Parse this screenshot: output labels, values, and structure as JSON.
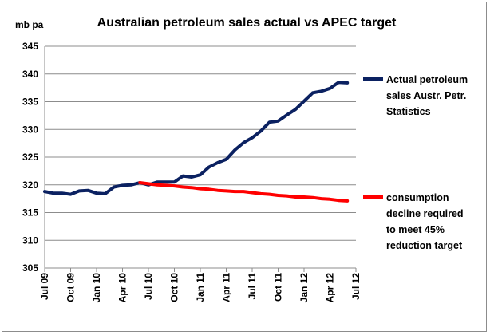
{
  "chart_data": {
    "type": "line",
    "title": "Australian petroleum sales actual vs APEC target",
    "ylabel": "mb pa",
    "ylim": [
      305,
      345
    ],
    "yticks": [
      305,
      310,
      315,
      320,
      325,
      330,
      335,
      340,
      345
    ],
    "xlim": [
      0,
      36
    ],
    "grid": true,
    "legend_position": "right",
    "categories": [
      "Jul 09",
      "Oct 09",
      "Jan 10",
      "Apr 10",
      "Jul 10",
      "Oct 10",
      "Jan 11",
      "Apr 11",
      "Jul 11",
      "Oct 11",
      "Jan 12",
      "Apr 12",
      "Jul 12"
    ],
    "series": [
      {
        "name": "Actual petroleum sales Austr. Petr. Statistics",
        "legend_lines": [
          "Actual petroleum",
          "sales Austr. Petr.",
          "Statistics"
        ],
        "color": "#0b2161",
        "x": [
          0,
          1,
          2,
          3,
          4,
          5,
          6,
          7,
          8,
          9,
          10,
          11,
          12,
          13,
          14,
          15,
          16,
          17,
          18,
          19,
          20,
          21,
          22,
          23,
          24,
          25,
          26,
          27,
          28,
          29,
          30,
          31,
          32,
          33,
          34,
          35
        ],
        "values": [
          318.8,
          318.5,
          318.5,
          318.3,
          318.9,
          319.0,
          318.5,
          318.4,
          319.6,
          319.9,
          320.0,
          320.4,
          320.0,
          320.5,
          320.5,
          320.5,
          321.6,
          321.4,
          321.8,
          323.2,
          324.0,
          324.6,
          326.3,
          327.6,
          328.5,
          329.7,
          331.3,
          331.5,
          332.6,
          333.6,
          335.1,
          336.6,
          336.9,
          337.4,
          338.5,
          338.4
        ]
      },
      {
        "name": "consumption decline required to meet 45% reduction target",
        "legend_lines": [
          "consumption",
          "decline required",
          "to meet 45%",
          "reduction target"
        ],
        "color": "#ff0000",
        "x": [
          11,
          12,
          13,
          14,
          15,
          16,
          17,
          18,
          19,
          20,
          21,
          22,
          23,
          24,
          25,
          26,
          27,
          28,
          29,
          30,
          31,
          32,
          33,
          34,
          35
        ],
        "values": [
          320.4,
          320.2,
          320.0,
          319.9,
          319.8,
          319.6,
          319.5,
          319.3,
          319.2,
          319.0,
          318.9,
          318.8,
          318.8,
          318.6,
          318.4,
          318.3,
          318.1,
          318.0,
          317.8,
          317.8,
          317.7,
          317.5,
          317.4,
          317.2,
          317.1
        ]
      }
    ]
  }
}
